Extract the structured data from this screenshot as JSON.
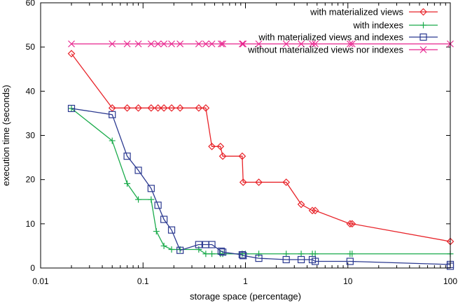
{
  "chart_data": {
    "type": "line",
    "title": "",
    "xlabel": "storage space (percentage)",
    "ylabel": "execution time (seconds)",
    "xscale": "log",
    "xlim": [
      0.01,
      100
    ],
    "ylim": [
      0,
      60
    ],
    "xticks": [
      0.01,
      0.1,
      1,
      10,
      100
    ],
    "xtick_labels": [
      "0.01",
      "0.1",
      "1",
      "10",
      "100"
    ],
    "yticks": [
      0,
      10,
      20,
      30,
      40,
      50,
      60
    ],
    "ytick_labels": [
      "0",
      "10",
      "20",
      "30",
      "40",
      "50",
      "60"
    ],
    "grid": false,
    "legend_position": "top-right",
    "series": [
      {
        "name": "with materialized views",
        "color": "#e8242a",
        "marker": "diamond",
        "x": [
          0.02,
          0.05,
          0.07,
          0.09,
          0.12,
          0.14,
          0.16,
          0.19,
          0.23,
          0.35,
          0.41,
          0.47,
          0.57,
          0.6,
          0.93,
          0.95,
          1.35,
          2.5,
          3.5,
          4.5,
          4.8,
          10.5,
          11.0,
          100
        ],
        "y": [
          48.5,
          36.2,
          36.2,
          36.2,
          36.2,
          36.2,
          36.2,
          36.2,
          36.2,
          36.2,
          36.2,
          27.5,
          27.5,
          25.3,
          25.3,
          19.4,
          19.4,
          19.4,
          14.4,
          13.0,
          13.0,
          10.0,
          10.0,
          6.0
        ]
      },
      {
        "name": "with indexes",
        "color": "#1aab4b",
        "marker": "plus",
        "x": [
          0.02,
          0.05,
          0.07,
          0.09,
          0.12,
          0.135,
          0.16,
          0.19,
          0.23,
          0.35,
          0.41,
          0.47,
          0.57,
          0.6,
          0.93,
          1.0,
          1.35,
          2.5,
          3.5,
          4.5,
          4.8,
          10.5,
          11.0,
          100
        ],
        "y": [
          36.1,
          28.8,
          19.1,
          15.5,
          15.5,
          8.3,
          5.0,
          4.2,
          4.2,
          4.2,
          3.2,
          3.2,
          3.2,
          3.2,
          3.2,
          3.2,
          3.2,
          3.2,
          3.2,
          3.2,
          3.2,
          3.2,
          3.2,
          3.2
        ]
      },
      {
        "name": "with materialized views and indexes",
        "color": "#2b3990",
        "marker": "square",
        "x": [
          0.02,
          0.05,
          0.07,
          0.09,
          0.12,
          0.14,
          0.16,
          0.19,
          0.23,
          0.35,
          0.41,
          0.47,
          0.58,
          0.6,
          0.93,
          0.95,
          1.35,
          2.5,
          3.5,
          4.5,
          4.8,
          10.5,
          100,
          100
        ],
        "y": [
          36.1,
          34.7,
          25.3,
          22.1,
          18.0,
          14.2,
          11.0,
          8.6,
          4.0,
          5.3,
          5.3,
          5.3,
          3.8,
          3.6,
          3.0,
          2.8,
          2.2,
          1.9,
          1.9,
          1.9,
          1.5,
          1.5,
          0.8,
          0.4
        ]
      },
      {
        "name": "without materialized views nor indexes",
        "color": "#e8268f",
        "marker": "x",
        "x": [
          0.02,
          0.05,
          0.07,
          0.09,
          0.12,
          0.14,
          0.16,
          0.19,
          0.23,
          0.35,
          0.41,
          0.47,
          0.58,
          0.6,
          0.93,
          0.95,
          1.35,
          2.5,
          3.5,
          4.5,
          4.8,
          10.5,
          11.0,
          100
        ],
        "y": [
          50.7,
          50.7,
          50.7,
          50.7,
          50.7,
          50.7,
          50.7,
          50.7,
          50.7,
          50.7,
          50.7,
          50.7,
          50.7,
          50.7,
          50.7,
          50.7,
          50.7,
          50.7,
          50.7,
          50.7,
          50.7,
          50.7,
          50.7,
          50.7
        ]
      }
    ]
  }
}
